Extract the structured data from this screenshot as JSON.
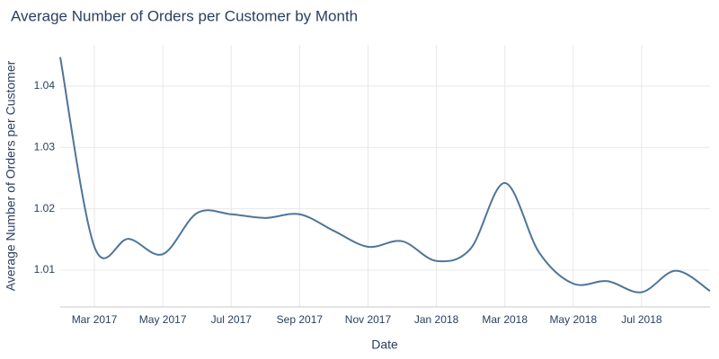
{
  "chart_data": {
    "type": "line",
    "title": "Average Number of Orders per Customer by Month",
    "x_label": "Date",
    "y_label": "Average Number of Orders per Customer",
    "x": [
      "2017-02",
      "2017-03",
      "2017-04",
      "2017-05",
      "2017-06",
      "2017-07",
      "2017-08",
      "2017-09",
      "2017-10",
      "2017-11",
      "2017-12",
      "2018-01",
      "2018-02",
      "2018-03",
      "2018-04",
      "2018-05",
      "2018-06",
      "2018-07",
      "2018-08",
      "2018-09"
    ],
    "series": [
      {
        "name": "Average Number of Orders per Customer",
        "color": "#4f7598",
        "values": [
          1.0447,
          1.0138,
          1.0151,
          1.0126,
          1.0193,
          1.0191,
          1.0185,
          1.0191,
          1.0164,
          1.0138,
          1.0147,
          1.0115,
          1.0135,
          1.0242,
          1.0129,
          1.0078,
          1.0082,
          1.0064,
          1.0099,
          1.0066
        ]
      }
    ],
    "xlim": [
      "2017-02",
      "2018-09"
    ],
    "xticks": [
      {
        "value": "2017-03",
        "label": "Mar 2017"
      },
      {
        "value": "2017-05",
        "label": "May 2017"
      },
      {
        "value": "2017-07",
        "label": "Jul 2017"
      },
      {
        "value": "2017-09",
        "label": "Sep 2017"
      },
      {
        "value": "2017-11",
        "label": "Nov 2017"
      },
      {
        "value": "2018-01",
        "label": "Jan 2018"
      },
      {
        "value": "2018-03",
        "label": "Mar 2018"
      },
      {
        "value": "2018-05",
        "label": "May 2018"
      },
      {
        "value": "2018-07",
        "label": "Jul 2018"
      }
    ],
    "ylim": [
      1.004,
      1.0467
    ],
    "yticks": [
      1.01,
      1.02,
      1.03,
      1.04
    ],
    "grid": true,
    "spline": true
  }
}
